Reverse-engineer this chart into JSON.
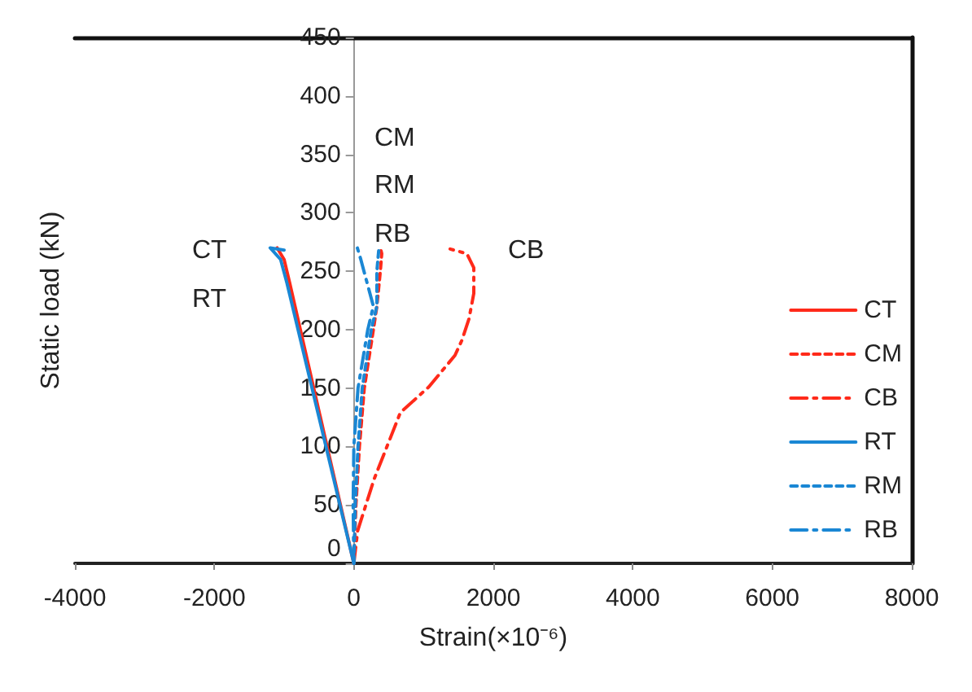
{
  "chart_data": {
    "type": "line",
    "xlabel": "Strain(×10⁻⁶)",
    "ylabel": "Static load (kN)",
    "xlim": [
      -4000,
      8000
    ],
    "xticks": [
      -4000,
      -2000,
      0,
      2000,
      4000,
      6000,
      8000
    ],
    "ylim": [
      0,
      450
    ],
    "yticks": [
      0,
      50,
      100,
      150,
      200,
      250,
      300,
      350,
      400,
      450
    ],
    "grid": false,
    "legend": "right",
    "marker": "none",
    "series": [
      {
        "name": "CT",
        "color": "#ff2a1a",
        "line_style": "solid",
        "x": [
          0,
          -480,
          -920,
          -1000,
          -1100
        ],
        "values": [
          0,
          125,
          240,
          260,
          270
        ]
      },
      {
        "name": "CM",
        "color": "#ff2a1a",
        "line_style": "dashed",
        "x": [
          0,
          30,
          80,
          150,
          280,
          330,
          380,
          400,
          380
        ],
        "values": [
          0,
          50,
          100,
          150,
          200,
          220,
          250,
          265,
          270
        ]
      },
      {
        "name": "CB",
        "color": "#ff2a1a",
        "line_style": "dashdot",
        "x": [
          0,
          55,
          290,
          667,
          1075,
          1450,
          1550,
          1650,
          1720,
          1720,
          1620,
          1380
        ],
        "values": [
          0,
          28,
          72,
          129,
          151,
          178,
          191,
          209,
          231,
          253,
          265,
          269
        ]
      },
      {
        "name": "RT",
        "color": "#1a87d4",
        "line_style": "solid",
        "x": [
          0,
          -500,
          -960,
          -1050,
          -1200,
          -1000
        ],
        "values": [
          0,
          125,
          240,
          260,
          270,
          268
        ]
      },
      {
        "name": "RM",
        "color": "#1a87d4",
        "line_style": "dashed",
        "x": [
          0,
          20,
          60,
          120,
          250,
          330,
          330,
          360
        ],
        "values": [
          0,
          50,
          100,
          150,
          200,
          220,
          250,
          270
        ]
      },
      {
        "name": "RB",
        "color": "#1a87d4",
        "line_style": "dashdot",
        "x": [
          0,
          -10,
          0,
          60,
          200,
          280,
          100,
          50
        ],
        "values": [
          0,
          50,
          100,
          150,
          200,
          220,
          260,
          270
        ]
      }
    ],
    "annotations": [
      "CT",
      "RT",
      "CM",
      "RM",
      "RB",
      "CB"
    ]
  }
}
